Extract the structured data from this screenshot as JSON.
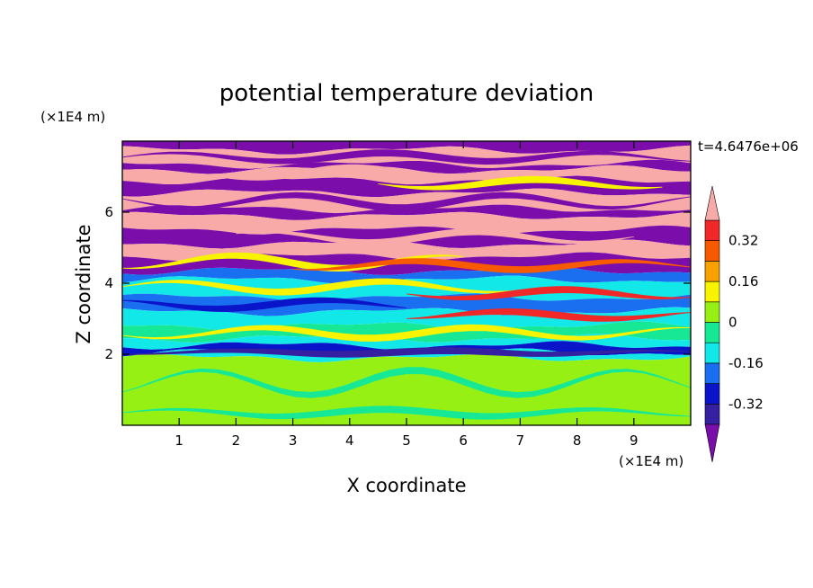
{
  "chart_data": {
    "type": "heatmap",
    "title": "potential temperature deviation",
    "xlabel": "X coordinate",
    "ylabel": "Z coordinate",
    "x_unit": "(×1E4 m)",
    "y_unit": "(×1E4 m)",
    "time_label": "t=4.6476e+06",
    "xlim": [
      0,
      10
    ],
    "ylim": [
      0,
      8
    ],
    "x_ticks": [
      "1",
      "2",
      "3",
      "4",
      "5",
      "6",
      "7",
      "8",
      "9"
    ],
    "y_ticks": [
      "2",
      "4",
      "6"
    ],
    "colorbar": {
      "levels": [
        -0.4,
        -0.32,
        -0.24,
        -0.16,
        -0.08,
        0,
        0.08,
        0.16,
        0.24,
        0.32,
        0.4
      ],
      "tick_labels": [
        "0.32",
        "0.16",
        "0",
        "-0.16",
        "-0.32"
      ],
      "tick_values": [
        0.32,
        0.16,
        0,
        -0.16,
        -0.32
      ],
      "colors": [
        "#7b0dab",
        "#3420a0",
        "#0a14c8",
        "#1a6ef0",
        "#12e8e8",
        "#16e896",
        "#96f014",
        "#f8f400",
        "#f8a000",
        "#f85a00",
        "#f02828",
        "#f8aaa8"
      ],
      "extend": "both"
    },
    "bands": [
      {
        "z0": 7.75,
        "z1": 8.0,
        "level": 0
      },
      {
        "z0": 7.35,
        "z1": 7.75,
        "level": 11
      },
      {
        "z0": 7.2,
        "z1": 7.35,
        "level": 0
      },
      {
        "z0": 6.9,
        "z1": 7.2,
        "level": 11
      },
      {
        "z0": 6.55,
        "z1": 6.9,
        "level": 0
      },
      {
        "z0": 6.1,
        "z1": 6.55,
        "level": 11
      },
      {
        "z0": 5.9,
        "z1": 6.1,
        "level": 0
      },
      {
        "z0": 5.5,
        "z1": 5.9,
        "level": 11
      },
      {
        "z0": 5.1,
        "z1": 5.5,
        "level": 0
      },
      {
        "z0": 4.75,
        "z1": 5.1,
        "level": 11
      },
      {
        "z0": 4.35,
        "z1": 4.75,
        "level": 0
      },
      {
        "z0": 4.1,
        "z1": 4.35,
        "level": 3
      },
      {
        "z0": 3.6,
        "z1": 4.1,
        "level": 4
      },
      {
        "z0": 3.2,
        "z1": 3.6,
        "level": 3
      },
      {
        "z0": 2.8,
        "z1": 3.2,
        "level": 4
      },
      {
        "z0": 2.45,
        "z1": 2.8,
        "level": 5
      },
      {
        "z0": 2.25,
        "z1": 2.45,
        "level": 4
      },
      {
        "z0": 2.05,
        "z1": 2.25,
        "level": 2
      },
      {
        "z0": 1.9,
        "z1": 2.05,
        "level": 4
      },
      {
        "z0": 0.0,
        "z1": 1.9,
        "level": 6
      }
    ],
    "features": [
      {
        "x0": 0.0,
        "x1": 10.0,
        "z": 7.55,
        "amp": 0.12,
        "level": 0
      },
      {
        "x0": 1.5,
        "x1": 6.0,
        "z": 7.1,
        "amp": 0.15,
        "level": 11
      },
      {
        "x0": 4.5,
        "x1": 9.5,
        "z": 6.8,
        "amp": 0.12,
        "level": 7
      },
      {
        "x0": 0.0,
        "x1": 10.0,
        "z": 6.3,
        "amp": 0.18,
        "level": 0
      },
      {
        "x0": 2.0,
        "x1": 9.0,
        "z": 5.3,
        "amp": 0.15,
        "level": 11
      },
      {
        "x0": 0.0,
        "x1": 6.0,
        "z": 4.6,
        "amp": 0.18,
        "level": 7
      },
      {
        "x0": 3.0,
        "x1": 10.0,
        "z": 4.5,
        "amp": 0.12,
        "level": 9
      },
      {
        "x0": 0.0,
        "x1": 7.0,
        "z": 3.9,
        "amp": 0.15,
        "level": 7
      },
      {
        "x0": 5.0,
        "x1": 10.0,
        "z": 3.7,
        "amp": 0.12,
        "level": 10
      },
      {
        "x0": 0.0,
        "x1": 5.0,
        "z": 3.4,
        "amp": 0.12,
        "level": 2
      },
      {
        "x0": 5.0,
        "x1": 10.0,
        "z": 3.1,
        "amp": 0.1,
        "level": 10
      },
      {
        "x0": 0.0,
        "x1": 10.0,
        "z": 2.6,
        "amp": 0.15,
        "level": 7
      },
      {
        "x0": 0.0,
        "x1": 10.0,
        "z": 2.05,
        "amp": 0.05,
        "level": 1
      },
      {
        "x0": 0.0,
        "x1": 10.0,
        "z": 1.2,
        "amp": 0.35,
        "level": 5
      },
      {
        "x0": 0.0,
        "x1": 10.0,
        "z": 0.35,
        "amp": 0.1,
        "level": 5
      }
    ]
  }
}
